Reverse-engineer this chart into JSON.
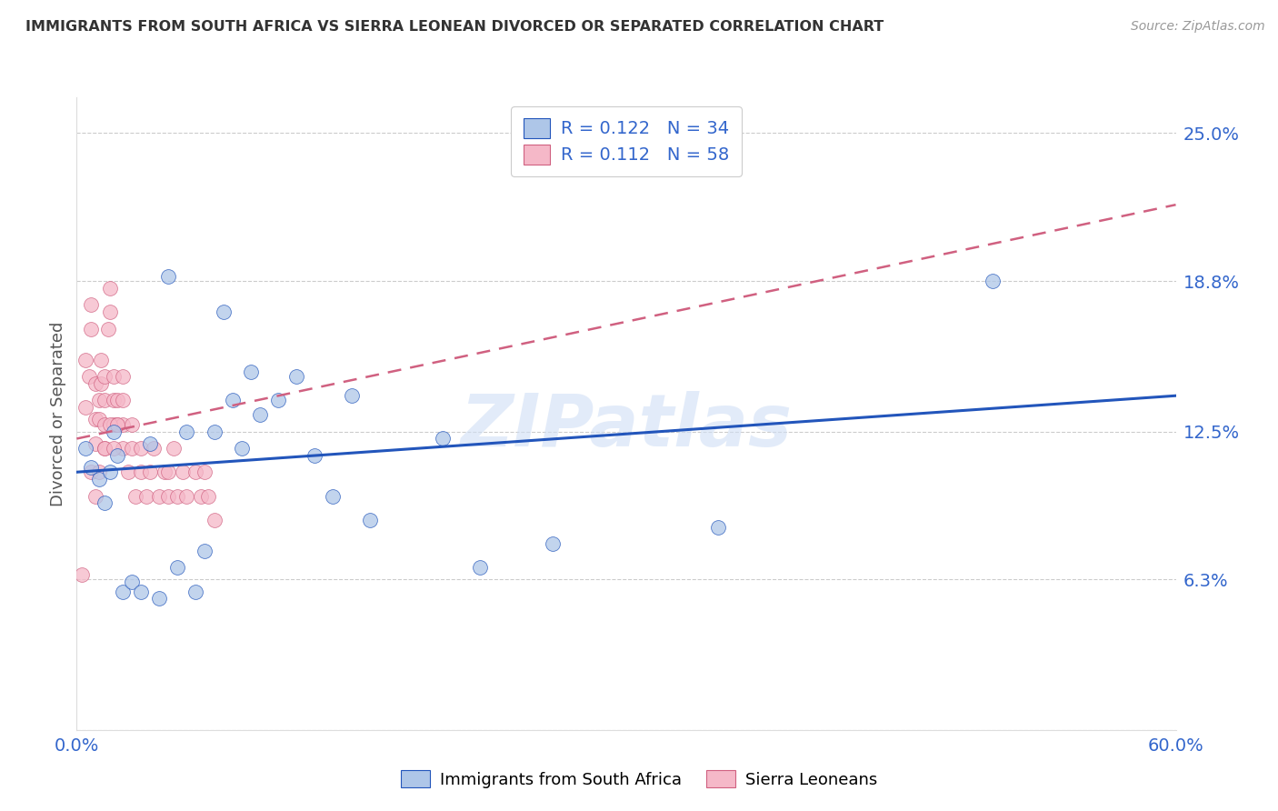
{
  "title": "IMMIGRANTS FROM SOUTH AFRICA VS SIERRA LEONEAN DIVORCED OR SEPARATED CORRELATION CHART",
  "source": "Source: ZipAtlas.com",
  "ylabel": "Divorced or Separated",
  "legend_label1": "Immigrants from South Africa",
  "legend_label2": "Sierra Leoneans",
  "R1": 0.122,
  "N1": 34,
  "R2": 0.112,
  "N2": 58,
  "color1": "#aec6e8",
  "color2": "#f5b8c8",
  "line_color1": "#2255bb",
  "line_color2": "#d06080",
  "x_min": 0.0,
  "x_max": 0.6,
  "y_min": 0.0,
  "y_max": 0.265,
  "ytick_vals": [
    0.0,
    0.063,
    0.125,
    0.188,
    0.25
  ],
  "ytick_labels": [
    "",
    "6.3%",
    "12.5%",
    "18.8%",
    "25.0%"
  ],
  "xtick_vals": [
    0.0,
    0.12,
    0.24,
    0.36,
    0.48,
    0.6
  ],
  "xtick_labels": [
    "0.0%",
    "",
    "",
    "",
    "",
    "60.0%"
  ],
  "axis_label_color": "#3366cc",
  "grid_color": "#cccccc",
  "watermark": "ZIPatlas",
  "scatter1_x": [
    0.005,
    0.008,
    0.012,
    0.015,
    0.018,
    0.02,
    0.022,
    0.025,
    0.03,
    0.035,
    0.04,
    0.045,
    0.05,
    0.055,
    0.06,
    0.065,
    0.07,
    0.075,
    0.08,
    0.085,
    0.09,
    0.095,
    0.1,
    0.11,
    0.12,
    0.13,
    0.14,
    0.15,
    0.16,
    0.2,
    0.22,
    0.26,
    0.35,
    0.5
  ],
  "scatter1_y": [
    0.118,
    0.11,
    0.105,
    0.095,
    0.108,
    0.125,
    0.115,
    0.058,
    0.062,
    0.058,
    0.12,
    0.055,
    0.19,
    0.068,
    0.125,
    0.058,
    0.075,
    0.125,
    0.175,
    0.138,
    0.118,
    0.15,
    0.132,
    0.138,
    0.148,
    0.115,
    0.098,
    0.14,
    0.088,
    0.122,
    0.068,
    0.078,
    0.085,
    0.188
  ],
  "scatter2_x": [
    0.003,
    0.005,
    0.005,
    0.007,
    0.008,
    0.008,
    0.01,
    0.01,
    0.01,
    0.012,
    0.012,
    0.013,
    0.013,
    0.015,
    0.015,
    0.015,
    0.015,
    0.017,
    0.018,
    0.018,
    0.02,
    0.02,
    0.02,
    0.022,
    0.022,
    0.025,
    0.025,
    0.025,
    0.028,
    0.03,
    0.03,
    0.032,
    0.035,
    0.035,
    0.038,
    0.04,
    0.042,
    0.045,
    0.048,
    0.05,
    0.05,
    0.053,
    0.055,
    0.058,
    0.06,
    0.065,
    0.068,
    0.07,
    0.072,
    0.075,
    0.008,
    0.01,
    0.012,
    0.015,
    0.018,
    0.02,
    0.022,
    0.025
  ],
  "scatter2_y": [
    0.065,
    0.135,
    0.155,
    0.148,
    0.168,
    0.178,
    0.12,
    0.13,
    0.145,
    0.13,
    0.138,
    0.145,
    0.155,
    0.118,
    0.128,
    0.138,
    0.148,
    0.168,
    0.175,
    0.185,
    0.128,
    0.138,
    0.148,
    0.128,
    0.138,
    0.118,
    0.128,
    0.148,
    0.108,
    0.118,
    0.128,
    0.098,
    0.108,
    0.118,
    0.098,
    0.108,
    0.118,
    0.098,
    0.108,
    0.098,
    0.108,
    0.118,
    0.098,
    0.108,
    0.098,
    0.108,
    0.098,
    0.108,
    0.098,
    0.088,
    0.108,
    0.098,
    0.108,
    0.118,
    0.128,
    0.118,
    0.128,
    0.138
  ],
  "trend1_x0": 0.0,
  "trend1_y0": 0.108,
  "trend1_x1": 0.6,
  "trend1_y1": 0.14,
  "trend2_x0": 0.0,
  "trend2_y0": 0.122,
  "trend2_x1": 0.6,
  "trend2_y1": 0.22
}
